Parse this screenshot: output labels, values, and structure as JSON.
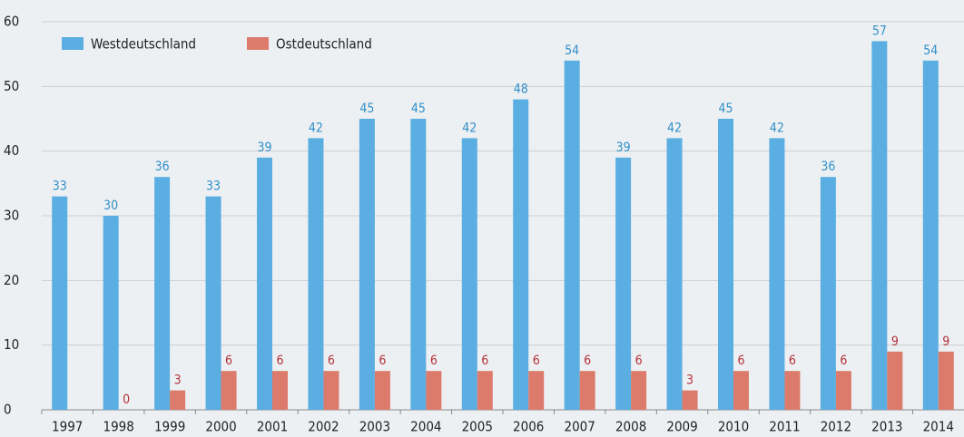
{
  "chart_data": {
    "type": "bar",
    "categories": [
      "1997",
      "1998",
      "1999",
      "2000",
      "2001",
      "2002",
      "2003",
      "2004",
      "2005",
      "2006",
      "2007",
      "2008",
      "2009",
      "2010",
      "2011",
      "2012",
      "2013",
      "2014"
    ],
    "series": [
      {
        "name": "Westdeutschland",
        "color": "#5aaee2",
        "label_color": "#2f8fc8",
        "values": [
          33,
          30,
          36,
          33,
          39,
          42,
          45,
          45,
          42,
          48,
          54,
          39,
          42,
          45,
          42,
          36,
          57,
          54
        ]
      },
      {
        "name": "Ostdeutschland",
        "color": "#dc7b6c",
        "label_color": "#b3313a",
        "values": [
          null,
          0,
          3,
          6,
          6,
          6,
          6,
          6,
          6,
          6,
          6,
          6,
          3,
          6,
          6,
          6,
          9,
          9
        ]
      }
    ],
    "ylim": [
      0,
      60
    ],
    "yticks": [
      0,
      10,
      20,
      30,
      40,
      50,
      60
    ],
    "grid": true,
    "legend": "top-left"
  }
}
